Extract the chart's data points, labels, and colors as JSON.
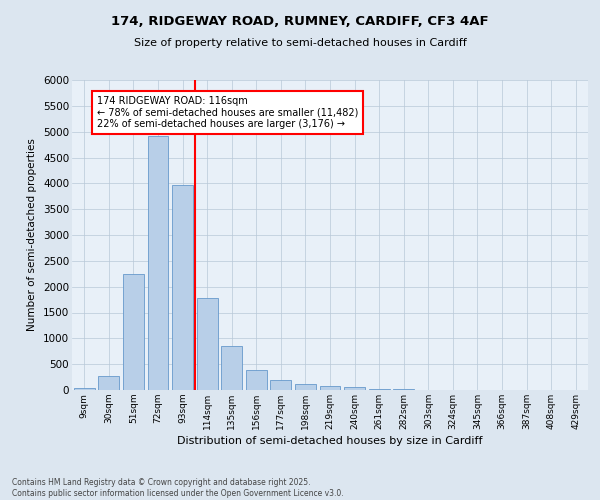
{
  "title1": "174, RIDGEWAY ROAD, RUMNEY, CARDIFF, CF3 4AF",
  "title2": "Size of property relative to semi-detached houses in Cardiff",
  "xlabel": "Distribution of semi-detached houses by size in Cardiff",
  "ylabel": "Number of semi-detached properties",
  "bar_labels": [
    "9sqm",
    "30sqm",
    "51sqm",
    "72sqm",
    "93sqm",
    "114sqm",
    "135sqm",
    "156sqm",
    "177sqm",
    "198sqm",
    "219sqm",
    "240sqm",
    "261sqm",
    "282sqm",
    "303sqm",
    "324sqm",
    "345sqm",
    "366sqm",
    "387sqm",
    "408sqm",
    "429sqm"
  ],
  "bar_values": [
    30,
    270,
    2250,
    4920,
    3970,
    1780,
    850,
    390,
    185,
    110,
    75,
    50,
    25,
    15,
    8,
    5,
    4,
    3,
    2,
    2,
    2
  ],
  "bar_color": "#b8cfe8",
  "bar_edge_color": "#6699cc",
  "vline_index": 5,
  "vline_color": "red",
  "annotation_text": "174 RIDGEWAY ROAD: 116sqm\n← 78% of semi-detached houses are smaller (11,482)\n22% of semi-detached houses are larger (3,176) →",
  "annotation_box_color": "white",
  "annotation_box_edge": "red",
  "ylim": [
    0,
    6000
  ],
  "yticks": [
    0,
    500,
    1000,
    1500,
    2000,
    2500,
    3000,
    3500,
    4000,
    4500,
    5000,
    5500,
    6000
  ],
  "footer": "Contains HM Land Registry data © Crown copyright and database right 2025.\nContains public sector information licensed under the Open Government Licence v3.0.",
  "bg_color": "#dce6f0",
  "plot_bg_color": "#e8f0f8",
  "grid_color": "#b8c8d8"
}
